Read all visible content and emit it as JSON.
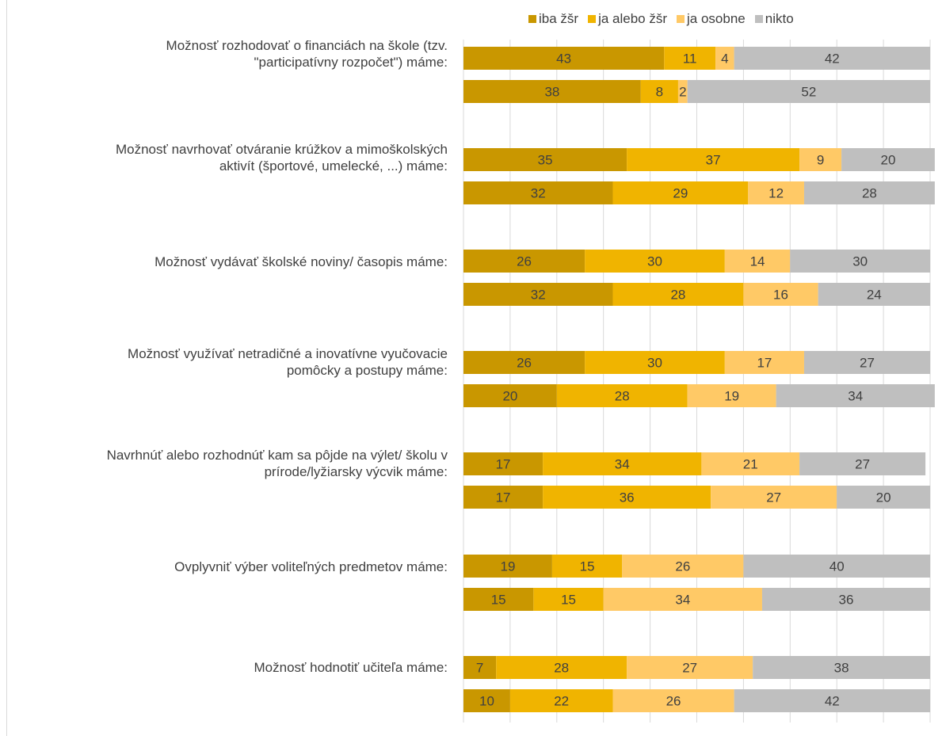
{
  "chart_data": {
    "type": "bar",
    "orientation": "horizontal",
    "stacked": true,
    "legend": "top",
    "grid": true,
    "xlim": [
      0,
      100
    ],
    "colors": [
      "#c99700",
      "#f0b400",
      "#ffc966",
      "#bfbfbf"
    ],
    "series_names": [
      "iba žšr",
      "ja alebo žšr",
      "ja osobne",
      "nikto"
    ],
    "categories": [
      "Možnosť rozhodovať o financiách na škole (tzv.\n\"participatívny rozpočet\") máme:",
      "Možnosť navrhovať otváranie krúžkov a mimoškolských\naktivít (športové, umelecké, ...) máme:",
      "Možnosť vydávať školské noviny/ časopis máme:",
      "Možnosť využívať netradičné a inovatívne vyučovacie\npomôcky a postupy máme:",
      "Navrhnúť alebo rozhodnúť kam sa pôjde na výlet/ školu v\nprírode/lyžiarsky výcvik máme:",
      "Ovplyvniť výber voliteľných predmetov máme:",
      "Možnosť hodnotiť učiteľa máme:"
    ],
    "values": [
      [
        [
          43,
          11,
          4,
          42
        ],
        [
          38,
          8,
          2,
          52
        ]
      ],
      [
        [
          35,
          37,
          9,
          20
        ],
        [
          32,
          29,
          12,
          28
        ]
      ],
      [
        [
          26,
          30,
          14,
          30
        ],
        [
          32,
          28,
          16,
          24
        ]
      ],
      [
        [
          26,
          30,
          17,
          27
        ],
        [
          20,
          28,
          19,
          34
        ]
      ],
      [
        [
          17,
          34,
          21,
          27
        ],
        [
          17,
          36,
          27,
          20
        ]
      ],
      [
        [
          19,
          15,
          26,
          40
        ],
        [
          15,
          15,
          34,
          36
        ]
      ],
      [
        [
          7,
          28,
          27,
          38
        ],
        [
          10,
          22,
          26,
          42
        ]
      ]
    ]
  }
}
